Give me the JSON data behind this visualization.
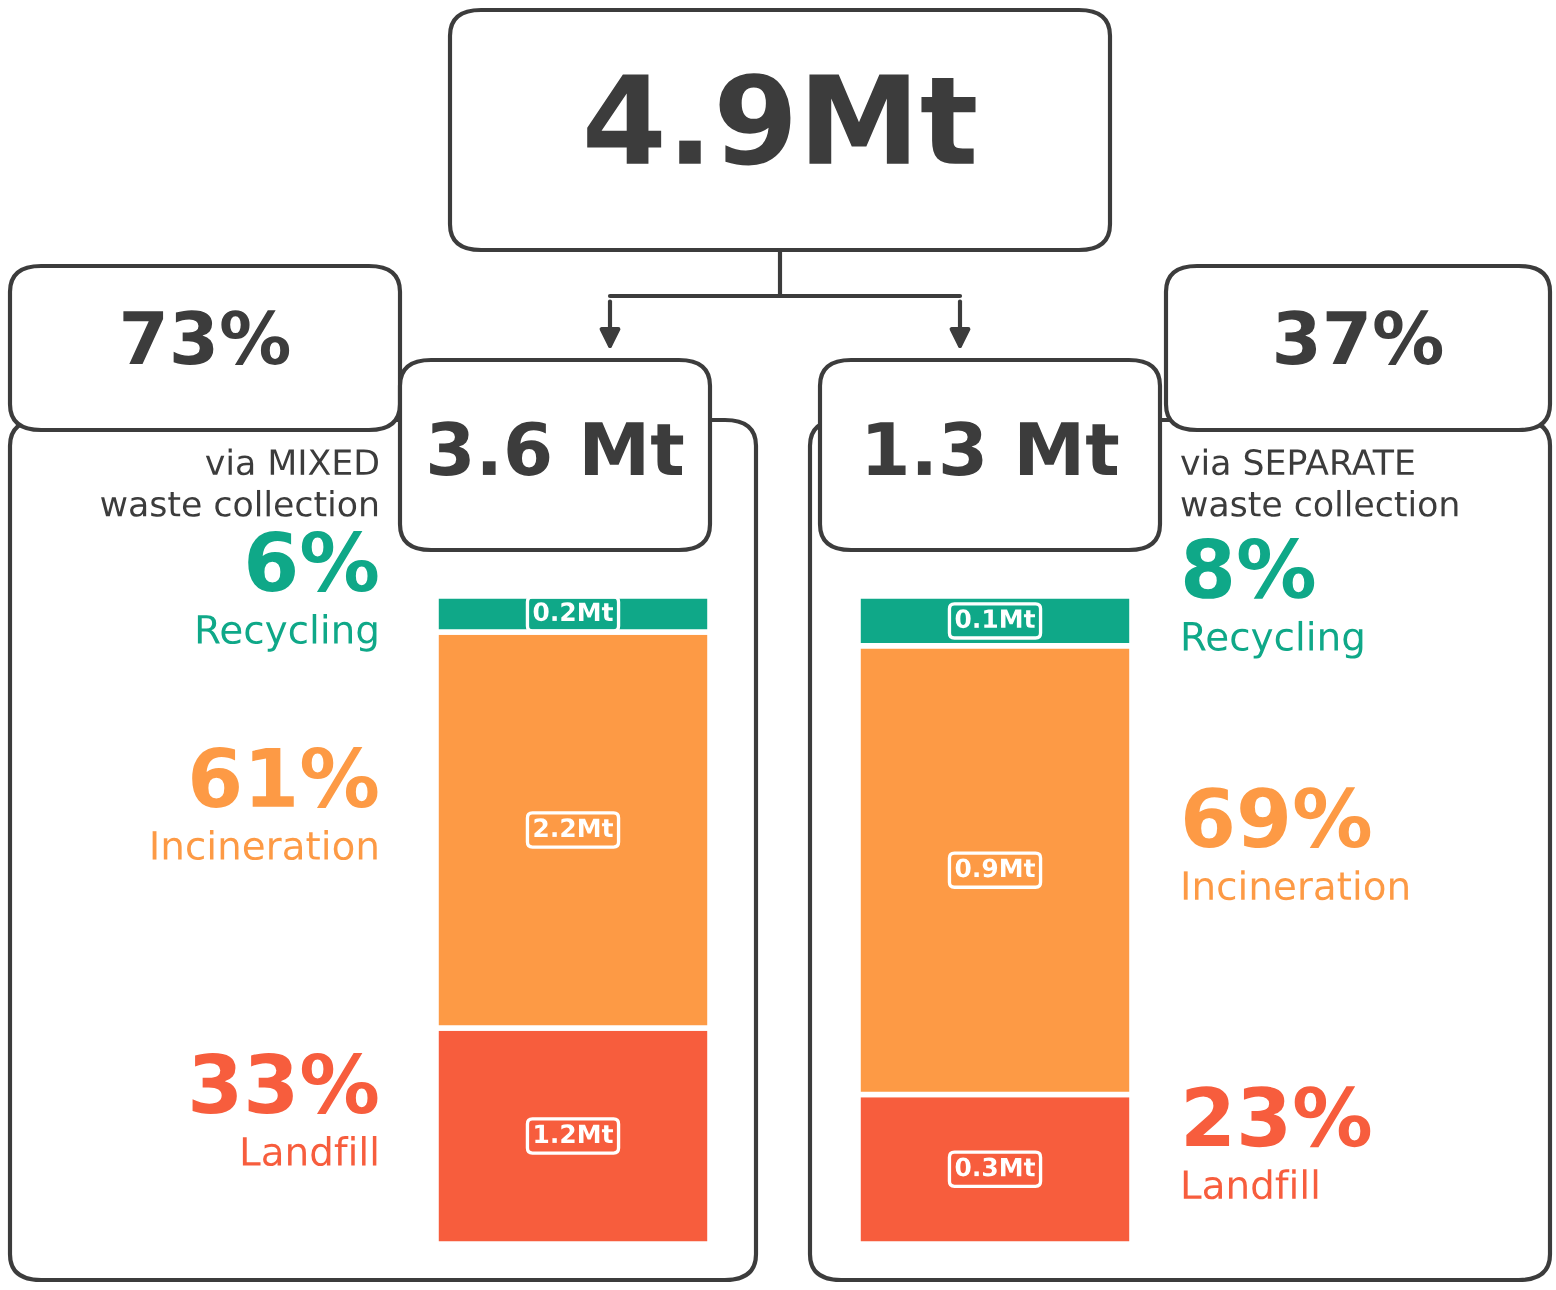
{
  "chart_data": [
    {
      "type": "bar",
      "stacked": true,
      "title": "3.6 Mt",
      "categories": [
        null
      ],
      "series": [
        {
          "name": "Landfill",
          "color": "#f75d3d",
          "values": [
            1.2
          ],
          "value_labels": [
            "1.2Mt"
          ]
        },
        {
          "name": "Incineration",
          "color": "#fd9a45",
          "values": [
            2.2
          ],
          "value_labels": [
            "2.2Mt"
          ]
        },
        {
          "name": "Recycling",
          "color": "#0fa888",
          "values": [
            0.2
          ],
          "value_labels": [
            "0.2Mt"
          ]
        }
      ],
      "annotations": [
        "4.9Mt",
        "73%",
        "via MIXED\nwaste collection",
        "6%",
        "61%",
        "33%"
      ]
    },
    {
      "type": "bar",
      "stacked": true,
      "title": "1.3 Mt",
      "categories": [
        null
      ],
      "series": [
        {
          "name": "Landfill",
          "color": "#f75d3d",
          "values": [
            0.3
          ],
          "value_labels": [
            "0.3Mt"
          ]
        },
        {
          "name": "Incineration",
          "color": "#fd9a45",
          "values": [
            0.9
          ],
          "value_labels": [
            "0.9Mt"
          ]
        },
        {
          "name": "Recycling",
          "color": "#0fa888",
          "values": [
            0.1
          ],
          "value_labels": [
            "0.1Mt"
          ]
        }
      ],
      "annotations": [
        "37%",
        "via SEPARATE\nwaste collection",
        "8%",
        "69%",
        "23%"
      ]
    }
  ]
}
